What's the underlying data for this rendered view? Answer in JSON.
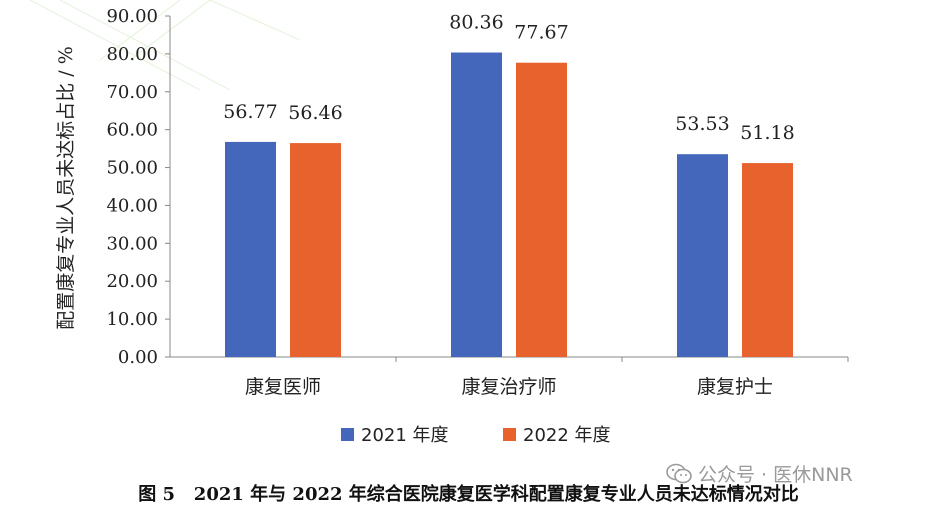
{
  "chart_data": {
    "type": "bar",
    "categories": [
      "康复医师",
      "康复治疗师",
      "康复护士"
    ],
    "series": [
      {
        "name": "2021 年度",
        "values": [
          56.77,
          80.36,
          53.53
        ],
        "color": "#4466bb"
      },
      {
        "name": "2022 年度",
        "values": [
          56.46,
          77.67,
          51.18
        ],
        "color": "#e8622e"
      }
    ],
    "data_labels": [
      [
        "56.77",
        "80.36",
        "53.53"
      ],
      [
        "56.46",
        "77.67",
        "51.18"
      ]
    ],
    "ylabel": "配置康复专业人员未达标占比 / %",
    "xlabel": "",
    "ylim": [
      0,
      90
    ],
    "yticks": [
      "0.00",
      "10.00",
      "20.00",
      "30.00",
      "40.00",
      "50.00",
      "60.00",
      "70.00",
      "80.00",
      "90.00"
    ],
    "grid": false,
    "legend_position": "bottom"
  },
  "caption": {
    "label": "图 5",
    "text": "2021 年与 2022 年综合医院康复医学科配置康复专业人员未达标情况对比"
  },
  "watermark": {
    "text": "公众号 · 医休NNR",
    "icon": "wechat-icon"
  }
}
